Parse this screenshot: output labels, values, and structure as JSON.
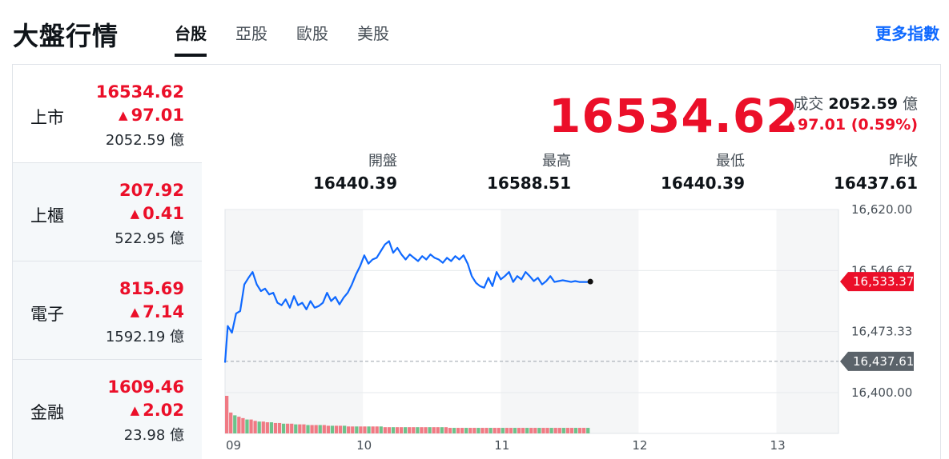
{
  "header": {
    "title": "大盤行情",
    "tabs": [
      {
        "label": "台股",
        "active": true
      },
      {
        "label": "亞股",
        "active": false
      },
      {
        "label": "歐股",
        "active": false
      },
      {
        "label": "美股",
        "active": false
      }
    ],
    "more_label": "更多指數"
  },
  "sidebar": {
    "items": [
      {
        "name": "上市",
        "price": "16534.62",
        "change": "97.01",
        "volume": "2052.59 億",
        "active": true
      },
      {
        "name": "上櫃",
        "price": "207.92",
        "change": "0.41",
        "volume": "522.95 億",
        "active": false
      },
      {
        "name": "電子",
        "price": "815.69",
        "change": "7.14",
        "volume": "1592.19 億",
        "active": false
      },
      {
        "name": "金融",
        "price": "1609.46",
        "change": "2.02",
        "volume": "23.98 億",
        "active": false
      }
    ]
  },
  "quote": {
    "price": "16534.62",
    "turnover_label": "成交",
    "turnover_value": "2052.59",
    "turnover_unit": "億",
    "change": "97.01 (0.59%)",
    "up_arrow": "▲",
    "stats": [
      {
        "label": "開盤",
        "value": "16440.39"
      },
      {
        "label": "最高",
        "value": "16588.51"
      },
      {
        "label": "最低",
        "value": "16440.39"
      },
      {
        "label": "昨收",
        "value": "16437.61"
      }
    ]
  },
  "colors": {
    "up": "#eb0f29",
    "line": "#0f69ff",
    "prev_close_tag": "#5b636a",
    "accent": "#0f69ff"
  },
  "chart_data": {
    "type": "line",
    "x_ticks": [
      "09",
      "10",
      "11",
      "12",
      "13"
    ],
    "x_range": [
      9,
      13.45
    ],
    "y_ticks": [
      "16,620.00",
      "16,546.67",
      "16,473.33",
      "16,400.00"
    ],
    "ylim": [
      16400,
      16620
    ],
    "last_value": 16533.37,
    "last_label": "16,533.37",
    "prev_close": 16437.61,
    "prev_close_label": "16,437.61",
    "series": [
      {
        "x": [
          9.0,
          9.02,
          9.05,
          9.08,
          9.11,
          9.14,
          9.17,
          9.2,
          9.23,
          9.26,
          9.29,
          9.32,
          9.35,
          9.38,
          9.41,
          9.44,
          9.47,
          9.5,
          9.53,
          9.56,
          9.59,
          9.62,
          9.65,
          9.68,
          9.71,
          9.74,
          9.77,
          9.8,
          9.83,
          9.86,
          9.89,
          9.92,
          9.95,
          9.98,
          10.01,
          10.04,
          10.07,
          10.1,
          10.13,
          10.16,
          10.19,
          10.22,
          10.25,
          10.28,
          10.31,
          10.34,
          10.37,
          10.4,
          10.43,
          10.46,
          10.49,
          10.52,
          10.55,
          10.58,
          10.61,
          10.64,
          10.67,
          10.7,
          10.73,
          10.76,
          10.79,
          10.82,
          10.85,
          10.88,
          10.91,
          10.94,
          10.97,
          11.0,
          11.03,
          11.06,
          11.09,
          11.12,
          11.15,
          11.18,
          11.21,
          11.24,
          11.27,
          11.3,
          11.33,
          11.36,
          11.39,
          11.42,
          11.45,
          11.48,
          11.51,
          11.54,
          11.57,
          11.6,
          11.63,
          11.65
        ],
        "values": [
          16436,
          16480,
          16472,
          16495,
          16498,
          16530,
          16538,
          16545,
          16530,
          16522,
          16525,
          16518,
          16520,
          16508,
          16505,
          16512,
          16502,
          16516,
          16505,
          16508,
          16500,
          16510,
          16502,
          16504,
          16508,
          16520,
          16510,
          16515,
          16506,
          16514,
          16520,
          16530,
          16542,
          16552,
          16565,
          16555,
          16560,
          16562,
          16570,
          16578,
          16582,
          16568,
          16574,
          16566,
          16560,
          16566,
          16562,
          16558,
          16564,
          16560,
          16566,
          16562,
          16560,
          16556,
          16562,
          16558,
          16564,
          16560,
          16565,
          16555,
          16540,
          16532,
          16528,
          16526,
          16538,
          16528,
          16545,
          16536,
          16540,
          16545,
          16533,
          16540,
          16536,
          16545,
          16540,
          16534,
          16538,
          16530,
          16534,
          16540,
          16533,
          16534,
          16535,
          16534,
          16533,
          16534,
          16533,
          16533,
          16533,
          16533.37
        ]
      }
    ],
    "volume_note": "volume bars shown beneath line",
    "volume": [
      54,
      30,
      26,
      24,
      22,
      20,
      20,
      18,
      17,
      17,
      16,
      16,
      15,
      15,
      14,
      14,
      14,
      13,
      13,
      13,
      12,
      12,
      12,
      12,
      12,
      11,
      11,
      11,
      11,
      11,
      10,
      10,
      10,
      10,
      10,
      10,
      10,
      10,
      10,
      9,
      9,
      9,
      9,
      9,
      9,
      9,
      9,
      9,
      9,
      9,
      9,
      9,
      9,
      9,
      9,
      8,
      8,
      8,
      8,
      8,
      8,
      8,
      8,
      8,
      8,
      8,
      8,
      8,
      8,
      8,
      8,
      8,
      8,
      8,
      8,
      8,
      8,
      8,
      8,
      8,
      8,
      8,
      8,
      8,
      8,
      8,
      8,
      8,
      8,
      8
    ],
    "grid": true
  }
}
